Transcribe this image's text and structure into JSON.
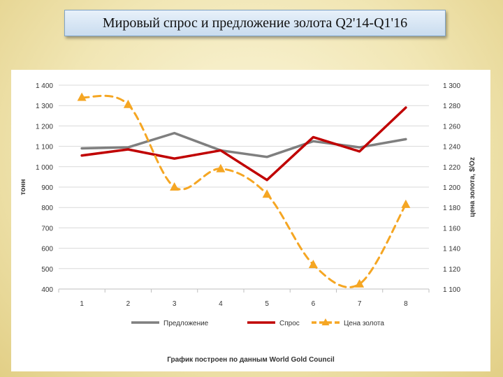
{
  "slide": {
    "title": "Мировый спрос и предложение золота Q2'14-Q1'16"
  },
  "chart_data": {
    "type": "line",
    "categories": [
      "1",
      "2",
      "3",
      "4",
      "5",
      "6",
      "7",
      "8"
    ],
    "ylabel_left": "тонн",
    "ylabel_right": "цена золота, $/Oz",
    "ylim_left": [
      400,
      1400
    ],
    "ylim_right": [
      1100,
      1300
    ],
    "yticks_left": [
      "400",
      "500",
      "600",
      "700",
      "800",
      "900",
      "1 000",
      "1 100",
      "1 200",
      "1 300",
      "1 400"
    ],
    "yticks_right": [
      "1 100",
      "1 120",
      "1 140",
      "1 160",
      "1 180",
      "1 200",
      "1 220",
      "1 240",
      "1 260",
      "1 280",
      "1 300"
    ],
    "grid": true,
    "legend_position": "bottom",
    "series": [
      {
        "name": "Предложение",
        "axis": "left",
        "color": "#7f7f7f",
        "style": "solid",
        "values": [
          1090,
          1095,
          1165,
          1080,
          1048,
          1125,
          1095,
          1135
        ]
      },
      {
        "name": "Спрос",
        "axis": "left",
        "color": "#c00000",
        "style": "solid",
        "values": [
          1055,
          1085,
          1040,
          1080,
          935,
          1145,
          1075,
          1290
        ]
      },
      {
        "name": "Цена золота",
        "axis": "right",
        "color": "#f5a623",
        "style": "dashed",
        "marker": "triangle",
        "values": [
          1288,
          1281,
          1200,
          1218,
          1193,
          1124,
          1105,
          1183
        ]
      }
    ],
    "note": "График построен по данным World Gold Council"
  }
}
